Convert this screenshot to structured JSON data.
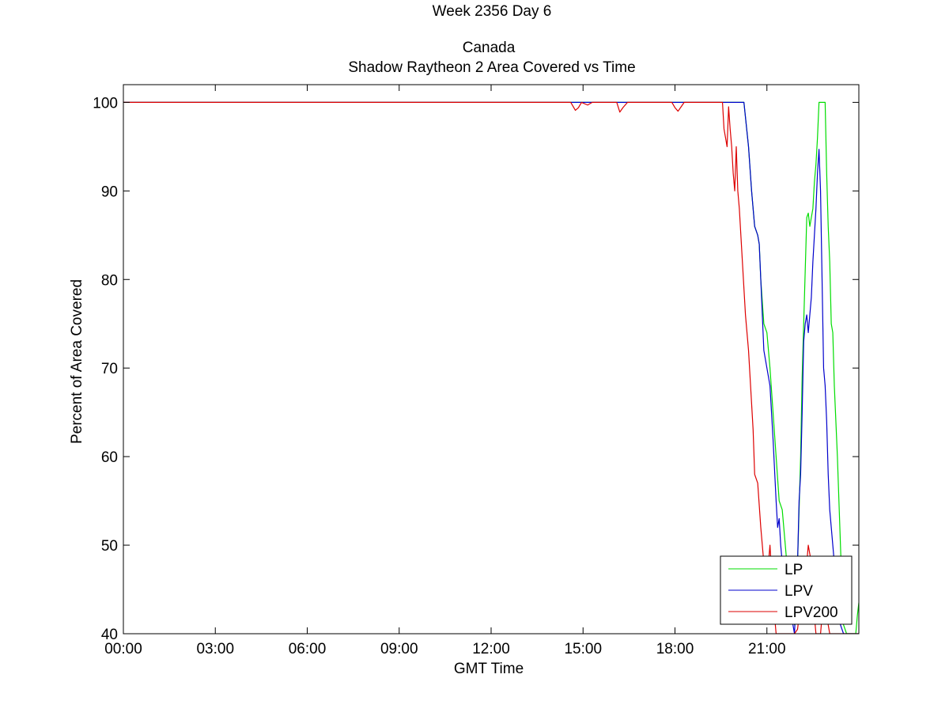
{
  "chart_data": {
    "type": "line",
    "title_lines": [
      "Week 2356 Day 6",
      "",
      "Canada",
      "Shadow Raytheon 2 Area Covered vs Time"
    ],
    "xlabel": "GMT Time",
    "ylabel": "Percent of Area Covered",
    "xlim": [
      0,
      24
    ],
    "ylim": [
      40,
      102
    ],
    "x_ticks": [
      0,
      3,
      6,
      9,
      12,
      15,
      18,
      21
    ],
    "x_tick_labels": [
      "00:00",
      "03:00",
      "06:00",
      "09:00",
      "12:00",
      "15:00",
      "18:00",
      "21:00"
    ],
    "y_ticks": [
      40,
      50,
      60,
      70,
      80,
      90,
      100
    ],
    "y_tick_labels": [
      "40",
      "50",
      "60",
      "70",
      "80",
      "90",
      "100"
    ],
    "grid": false,
    "legend_position": "bottom-right",
    "series": [
      {
        "name": "LP",
        "color": "#00dd00",
        "points": [
          [
            0,
            100
          ],
          [
            14.6,
            100
          ],
          [
            19.7,
            100
          ],
          [
            20.0,
            100
          ],
          [
            20.25,
            100
          ],
          [
            20.4,
            95
          ],
          [
            20.5,
            90
          ],
          [
            20.6,
            86
          ],
          [
            20.7,
            85
          ],
          [
            20.75,
            84
          ],
          [
            20.8,
            80
          ],
          [
            20.9,
            75
          ],
          [
            21.0,
            74
          ],
          [
            21.05,
            72
          ],
          [
            21.1,
            70
          ],
          [
            21.2,
            65
          ],
          [
            21.3,
            60
          ],
          [
            21.4,
            55
          ],
          [
            21.5,
            54
          ],
          [
            21.55,
            52
          ],
          [
            21.6,
            50
          ],
          [
            21.7,
            46
          ],
          [
            21.8,
            43
          ],
          [
            21.9,
            41
          ],
          [
            22.0,
            48
          ],
          [
            22.1,
            60
          ],
          [
            22.15,
            69
          ],
          [
            22.2,
            75
          ],
          [
            22.25,
            81
          ],
          [
            22.3,
            87
          ],
          [
            22.35,
            87.5
          ],
          [
            22.4,
            86
          ],
          [
            22.45,
            87
          ],
          [
            22.5,
            88
          ],
          [
            22.55,
            91
          ],
          [
            22.6,
            93
          ],
          [
            22.65,
            96
          ],
          [
            22.7,
            100
          ],
          [
            22.9,
            100
          ],
          [
            22.95,
            92
          ],
          [
            23.0,
            86
          ],
          [
            23.05,
            82
          ],
          [
            23.1,
            75
          ],
          [
            23.15,
            74
          ],
          [
            23.2,
            68
          ],
          [
            23.3,
            60
          ],
          [
            23.35,
            55
          ],
          [
            23.4,
            50
          ],
          [
            23.45,
            45
          ],
          [
            23.5,
            41
          ],
          [
            23.6,
            40
          ],
          [
            23.9,
            40
          ],
          [
            23.95,
            42
          ],
          [
            24.0,
            43.5
          ]
        ]
      },
      {
        "name": "LPV",
        "color": "#0000cc",
        "points": [
          [
            0,
            100
          ],
          [
            14.6,
            100
          ],
          [
            19.7,
            100
          ],
          [
            20.0,
            100
          ],
          [
            20.25,
            100
          ],
          [
            20.4,
            95
          ],
          [
            20.5,
            90
          ],
          [
            20.6,
            86
          ],
          [
            20.7,
            85
          ],
          [
            20.75,
            84
          ],
          [
            20.8,
            80
          ],
          [
            20.9,
            72
          ],
          [
            20.95,
            71
          ],
          [
            21.0,
            70
          ],
          [
            21.1,
            68
          ],
          [
            21.2,
            62
          ],
          [
            21.3,
            55
          ],
          [
            21.35,
            52
          ],
          [
            21.4,
            53
          ],
          [
            21.45,
            50
          ],
          [
            21.5,
            48
          ],
          [
            21.6,
            46
          ],
          [
            21.7,
            44
          ],
          [
            21.8,
            42
          ],
          [
            21.9,
            40
          ],
          [
            22.0,
            48
          ],
          [
            22.05,
            55
          ],
          [
            22.1,
            58
          ],
          [
            22.15,
            65
          ],
          [
            22.2,
            73
          ],
          [
            22.25,
            75
          ],
          [
            22.3,
            76
          ],
          [
            22.35,
            74
          ],
          [
            22.4,
            76
          ],
          [
            22.45,
            78
          ],
          [
            22.5,
            82
          ],
          [
            22.6,
            88
          ],
          [
            22.65,
            92
          ],
          [
            22.7,
            94.7
          ],
          [
            22.75,
            90
          ],
          [
            22.8,
            80
          ],
          [
            22.85,
            70
          ],
          [
            22.9,
            68
          ],
          [
            22.95,
            64
          ],
          [
            23.0,
            58
          ],
          [
            23.05,
            54
          ],
          [
            23.1,
            52
          ],
          [
            23.2,
            48
          ],
          [
            23.3,
            44
          ],
          [
            23.4,
            41
          ],
          [
            23.5,
            40
          ],
          [
            24.0,
            40
          ]
        ]
      },
      {
        "name": "LPV200",
        "color": "#dd0000",
        "points": [
          [
            0,
            100
          ],
          [
            14.6,
            100
          ],
          [
            14.75,
            99.1
          ],
          [
            14.85,
            99.4
          ],
          [
            14.95,
            100
          ],
          [
            15.15,
            99.7
          ],
          [
            15.3,
            100
          ],
          [
            16.1,
            100
          ],
          [
            16.2,
            98.9
          ],
          [
            16.3,
            99.4
          ],
          [
            16.45,
            100
          ],
          [
            17.9,
            100
          ],
          [
            18.0,
            99.4
          ],
          [
            18.1,
            99.0
          ],
          [
            18.2,
            99.5
          ],
          [
            18.3,
            100
          ],
          [
            19.55,
            100
          ],
          [
            19.6,
            97
          ],
          [
            19.7,
            95
          ],
          [
            19.75,
            99.5
          ],
          [
            19.8,
            97
          ],
          [
            19.85,
            95
          ],
          [
            19.9,
            92
          ],
          [
            19.95,
            90
          ],
          [
            20.0,
            95
          ],
          [
            20.05,
            90
          ],
          [
            20.1,
            88
          ],
          [
            20.2,
            82
          ],
          [
            20.3,
            76
          ],
          [
            20.4,
            72
          ],
          [
            20.5,
            66
          ],
          [
            20.55,
            63
          ],
          [
            20.6,
            58
          ],
          [
            20.7,
            57
          ],
          [
            20.8,
            52
          ],
          [
            20.9,
            48
          ],
          [
            21.0,
            45
          ],
          [
            21.05,
            48
          ],
          [
            21.1,
            50
          ],
          [
            21.2,
            44
          ],
          [
            21.3,
            40
          ],
          [
            21.9,
            40
          ],
          [
            22.0,
            40.5
          ],
          [
            22.05,
            42
          ],
          [
            22.1,
            44
          ],
          [
            22.2,
            46
          ],
          [
            22.3,
            48
          ],
          [
            22.35,
            50
          ],
          [
            22.4,
            49
          ],
          [
            22.45,
            48
          ],
          [
            22.5,
            45
          ],
          [
            22.55,
            42
          ],
          [
            22.6,
            40
          ],
          [
            22.75,
            40
          ],
          [
            22.8,
            42
          ],
          [
            22.85,
            44
          ],
          [
            22.9,
            46
          ],
          [
            22.95,
            43
          ],
          [
            23.0,
            41
          ],
          [
            23.05,
            40
          ],
          [
            24.0,
            40
          ]
        ]
      }
    ]
  }
}
